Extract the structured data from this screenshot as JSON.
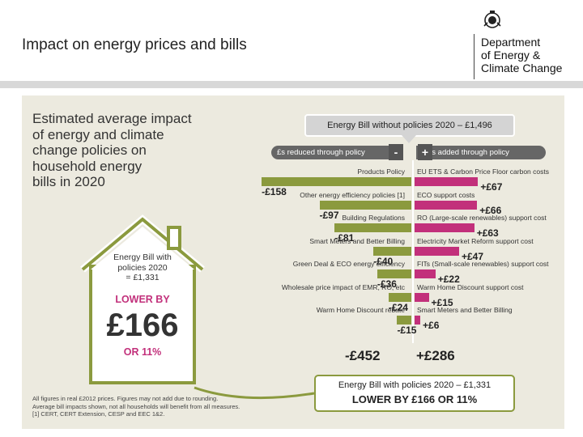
{
  "slide": {
    "title": "Impact on energy prices and bills",
    "logo_lines": [
      "Department",
      "of Energy &",
      "Climate Change"
    ]
  },
  "infographic": {
    "heading_lines": [
      "Estimated average impact",
      "of energy and climate",
      "change policies on",
      "household energy",
      "bills in 2020"
    ],
    "top_box": "Energy Bill without policies 2020 – £1,496",
    "reduced_label": "£s reduced through policy",
    "added_label": "£s added through policy",
    "minus_sign": "-",
    "plus_sign": "+",
    "house": {
      "line1": "Energy Bill with",
      "line2": "policies 2020",
      "line3": "= £1,331",
      "lower_by": "LOWER BY",
      "amount": "£166",
      "percent": "OR 11%"
    },
    "total_reduced": "-£452",
    "total_added": "+£286",
    "bottom_box": {
      "line1": "Energy Bill with policies 2020 – £1,331",
      "line2": "LOWER BY £166 OR 11%"
    },
    "footnotes": [
      "All figures in real £2012 prices. Figures may not add due to rounding.",
      "Average bill impacts shown, not all households will benefit from all measures.",
      "[1] CERT, CERT Extension, CESP and EEC 1&2."
    ],
    "colors": {
      "reduced_bar": "#8b9a3e",
      "added_bar": "#c2307b",
      "panel": "#eceadf"
    }
  },
  "chart_data": {
    "type": "bar",
    "title": "Estimated average impact of energy and climate change policies on household energy bills in 2020",
    "unit": "£",
    "series": [
      {
        "name": "£s reduced through policy",
        "categories": [
          "Products Policy",
          "Other energy efficiency policies [1]",
          "Building Regulations",
          "Smart Meters and Better Billing",
          "Green Deal & ECO energy efficiency",
          "Wholesale price impact of EMR, RO, etc",
          "Warm Home Discount rebate"
        ],
        "values": [
          -158,
          -97,
          -81,
          -40,
          -36,
          -24,
          -15
        ],
        "labels": [
          "-£158",
          "-£97",
          "-£81",
          "-£40",
          "-£36",
          "-£24",
          "-£15"
        ]
      },
      {
        "name": "£s added through policy",
        "categories": [
          "EU ETS & Carbon Price Floor carbon costs",
          "ECO support costs",
          "RO (Large-scale renewables) support cost",
          "Electricity Market Reform support cost",
          "FITs (Small-scale renewables) support cost",
          "Warm Home Discount support cost",
          "Smart Meters and Better Billing"
        ],
        "values": [
          67,
          66,
          63,
          47,
          22,
          15,
          6
        ],
        "labels": [
          "+£67",
          "+£66",
          "+£63",
          "+£47",
          "+£22",
          "+£15",
          "+£6"
        ]
      }
    ],
    "totals": {
      "reduced": -452,
      "added": 286
    },
    "baseline": 1496,
    "with_policies": 1331
  }
}
